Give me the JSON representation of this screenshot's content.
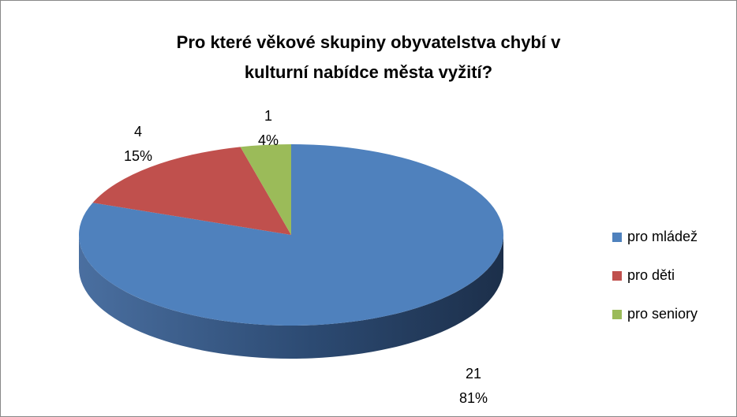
{
  "chart_data": {
    "type": "pie",
    "title": "Pro které věkové skupiny obyvatelstva chybí v kulturní nabídce města vyžití?",
    "categories": [
      "pro mládež",
      "pro děti",
      "pro seniory"
    ],
    "values": [
      21,
      4,
      1
    ],
    "percent_labels": [
      "81%",
      "15%",
      "4%"
    ],
    "colors": [
      "#4f81bd",
      "#c0504d",
      "#9bbb59"
    ],
    "legend": "right"
  }
}
